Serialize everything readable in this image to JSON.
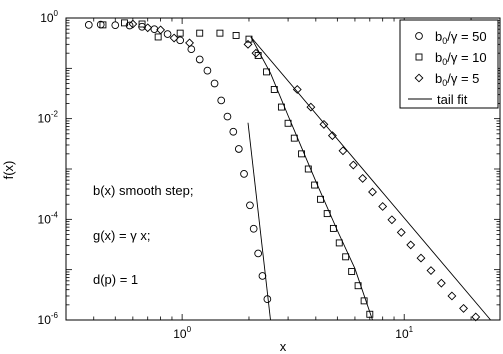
{
  "chart_data": {
    "type": "scatter",
    "title": "",
    "xlabel": "x",
    "ylabel": "f(x)",
    "xscale": "log",
    "yscale": "log",
    "xlim": [
      0.3,
      27
    ],
    "ylim": [
      1e-06,
      1
    ],
    "grid": false,
    "legend_position": "top-right",
    "x_ticks": [
      {
        "value": 1,
        "base": "10",
        "exp": "0"
      },
      {
        "value": 10,
        "base": "10",
        "exp": "1"
      }
    ],
    "y_ticks": [
      {
        "value": 1,
        "base": "10",
        "exp": "0"
      },
      {
        "value": 0.01,
        "base": "10",
        "exp": "-2"
      },
      {
        "value": 0.0001,
        "base": "10",
        "exp": "-4"
      },
      {
        "value": 1e-06,
        "base": "10",
        "exp": "-6"
      }
    ],
    "annotations": [
      "b(x) smooth step;",
      "g(x) = γ x;",
      "d(p) = 1"
    ],
    "legend": [
      {
        "marker": "circle",
        "label_main": "b",
        "label_sub": "0",
        "label_rest": "/γ = 50"
      },
      {
        "marker": "square",
        "label_main": "b",
        "label_sub": "0",
        "label_rest": "/γ = 10"
      },
      {
        "marker": "diamond",
        "label_main": "b",
        "label_sub": "0",
        "label_rest": "/γ = 5"
      },
      {
        "marker": "line",
        "label_main": "tail fit",
        "label_sub": "",
        "label_rest": ""
      }
    ],
    "series": [
      {
        "marker": "circle",
        "points": [
          [
            0.38,
            0.73
          ],
          [
            0.43,
            0.74
          ],
          [
            0.5,
            0.72
          ],
          [
            0.58,
            0.71
          ],
          [
            0.66,
            0.67
          ],
          [
            0.75,
            0.6
          ],
          [
            0.86,
            0.48
          ],
          [
            0.98,
            0.36
          ],
          [
            1.1,
            0.24
          ],
          [
            1.2,
            0.15
          ],
          [
            1.3,
            0.09
          ],
          [
            1.4,
            0.05
          ],
          [
            1.5,
            0.023
          ],
          [
            1.6,
            0.011
          ],
          [
            1.7,
            0.0055
          ],
          [
            1.8,
            0.0025
          ],
          [
            1.9,
            0.0008
          ],
          [
            2.02,
            0.00019
          ],
          [
            2.1,
            6.5e-05
          ],
          [
            2.2,
            2.1e-05
          ],
          [
            2.3,
            7.5e-06
          ],
          [
            2.42,
            2.6e-06
          ]
        ]
      },
      {
        "marker": "square",
        "points": [
          [
            0.44,
            0.73
          ],
          [
            0.55,
            0.8
          ],
          [
            0.66,
            0.76
          ],
          [
            0.78,
            0.42
          ],
          [
            0.98,
            0.5
          ],
          [
            1.2,
            0.5
          ],
          [
            1.48,
            0.5
          ],
          [
            1.75,
            0.45
          ],
          [
            2.0,
            0.38
          ],
          [
            2.2,
            0.18
          ],
          [
            2.4,
            0.085
          ],
          [
            2.6,
            0.038
          ],
          [
            2.8,
            0.017
          ],
          [
            3.0,
            0.0081
          ],
          [
            3.2,
            0.0041
          ],
          [
            3.45,
            0.002
          ],
          [
            3.7,
            0.001
          ],
          [
            3.95,
            0.00048
          ],
          [
            4.2,
            0.00025
          ],
          [
            4.5,
            0.00013
          ],
          [
            4.8,
            6.6e-05
          ],
          [
            5.1,
            3.4e-05
          ],
          [
            5.45,
            1.8e-05
          ],
          [
            5.8,
            9.2e-06
          ],
          [
            6.2,
            4.8e-06
          ],
          [
            6.6,
            2.4e-06
          ],
          [
            7.0,
            1.3e-06
          ]
        ]
      },
      {
        "marker": "diamond",
        "points": [
          [
            0.6,
            0.76
          ],
          [
            0.7,
            0.64
          ],
          [
            0.8,
            0.58
          ],
          [
            0.92,
            0.4
          ],
          [
            1.08,
            0.32
          ],
          [
            1.98,
            0.3
          ],
          [
            2.15,
            0.2
          ],
          [
            3.3,
            0.038
          ],
          [
            3.8,
            0.017
          ],
          [
            4.35,
            0.0077
          ],
          [
            4.75,
            0.0046
          ],
          [
            5.3,
            0.0023
          ],
          [
            5.9,
            0.0012
          ],
          [
            6.5,
            0.00065
          ],
          [
            7.2,
            0.00035
          ],
          [
            8.0,
            0.00018
          ],
          [
            8.8,
            9.8e-05
          ],
          [
            9.7,
            5.5e-05
          ],
          [
            10.7,
            3.1e-05
          ],
          [
            11.9,
            1.7e-05
          ],
          [
            13.2,
            9.6e-06
          ],
          [
            14.7,
            5.4e-06
          ],
          [
            16.4,
            3e-06
          ],
          [
            18.5,
            1.7e-06
          ],
          [
            21.0,
            1.15e-06
          ]
        ]
      }
    ],
    "fit_lines": [
      {
        "points": [
          [
            1.98,
            0.0083
          ],
          [
            2.5,
            1e-06
          ]
        ]
      },
      {
        "points": [
          [
            2.04,
            0.42
          ],
          [
            2.5,
            0.08
          ],
          [
            3.0,
            0.0115
          ],
          [
            4.0,
            0.00057
          ],
          [
            5.0,
            6e-05
          ],
          [
            6.0,
            1.05e-05
          ],
          [
            7.2,
            1e-06
          ]
        ]
      },
      {
        "points": [
          [
            2.04,
            0.42
          ],
          [
            24.5,
            1e-06
          ]
        ]
      }
    ]
  }
}
